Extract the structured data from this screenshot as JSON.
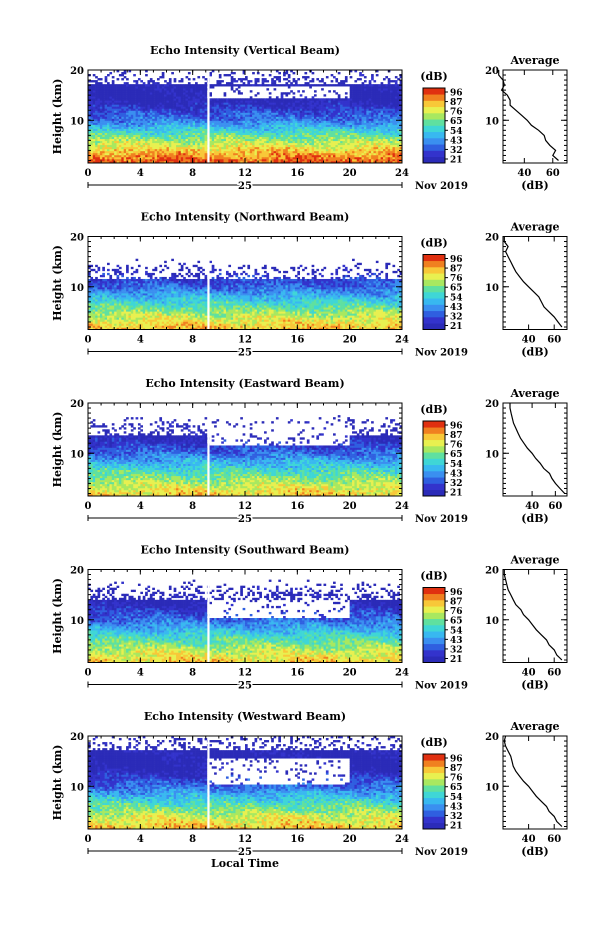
{
  "x_axis_title": "Local Time",
  "colorbar_unit": "(dB)",
  "colorbar_ticks": [
    "96",
    "87",
    "76",
    "65",
    "54",
    "43",
    "32",
    "21"
  ],
  "avg_title": "Average",
  "avg_unit": "(dB)",
  "date_day": "25",
  "date_month_year": "Nov 2019",
  "colors": {
    "blank": "#ffffff",
    "scale": [
      "#2b2bb8",
      "#3333cc",
      "#2f5fe0",
      "#3a8ff0",
      "#38b8f0",
      "#3fd6d6",
      "#5fe0a0",
      "#a8e860",
      "#e8f050",
      "#f8c838",
      "#f08020",
      "#e03010"
    ]
  },
  "chart_data": [
    {
      "type": "heatmap",
      "title": "Echo Intensity (Vertical Beam)",
      "ylabel": "Height (km)",
      "xlim": [
        0,
        24
      ],
      "xticks": [
        0,
        4,
        8,
        12,
        16,
        20,
        24
      ],
      "ylim": [
        1.5,
        20
      ],
      "yticks": [
        10,
        20
      ],
      "zlim": [
        21,
        96
      ],
      "gap_hour": 9.2,
      "profile_heights": [
        2,
        3,
        4,
        5,
        6,
        7,
        8,
        9,
        10,
        11,
        12,
        13,
        14,
        15,
        16,
        17,
        18,
        19,
        20
      ],
      "profile_db": [
        64,
        60,
        62,
        58,
        55,
        54,
        50,
        45,
        42,
        38,
        34,
        30,
        30,
        28,
        24,
        26,
        25,
        22,
        22
      ],
      "avg_xlim": [
        25,
        70
      ],
      "avg_xticks": [
        40,
        60
      ],
      "surface": {
        "base": 21,
        "heights": [
          2,
          4,
          7,
          10,
          12,
          13,
          14,
          15,
          16,
          17,
          18,
          19,
          20
        ],
        "values": [
          90,
          80,
          62,
          40,
          32,
          27,
          24,
          22,
          22,
          22,
          22,
          22,
          22
        ],
        "top": 17,
        "gaps": [
          [
            14.2,
            16.7,
            0.85
          ]
        ]
      }
    },
    {
      "type": "heatmap",
      "title": "Echo Intensity (Northward Beam)",
      "ylabel": "Height (km)",
      "xlim": [
        0,
        24
      ],
      "xticks": [
        0,
        4,
        8,
        12,
        16,
        20,
        24
      ],
      "ylim": [
        1.5,
        20
      ],
      "yticks": [
        10,
        20
      ],
      "zlim": [
        21,
        96
      ],
      "gap_hour": 9.2,
      "profile_heights": [
        2,
        3,
        4,
        5,
        6,
        7,
        8,
        9,
        10,
        11,
        12,
        13,
        14,
        15,
        16,
        17,
        18,
        19,
        20
      ],
      "profile_db": [
        66,
        63,
        60,
        56,
        52,
        50,
        48,
        44,
        40,
        36,
        33,
        30,
        28,
        26,
        24,
        22,
        24,
        21,
        21
      ],
      "avg_xlim": [
        20,
        70
      ],
      "avg_xticks": [
        40,
        60
      ],
      "surface": {
        "base": 21,
        "heights": [
          2,
          4,
          7,
          10,
          12,
          13,
          14,
          15,
          16,
          17,
          18,
          19,
          20
        ],
        "values": [
          80,
          72,
          55,
          38,
          30,
          25,
          22,
          22,
          22,
          22,
          22,
          22,
          22
        ],
        "top": 11.5,
        "gaps": [
          [
            14.2,
            18.6,
            0.9
          ]
        ]
      }
    },
    {
      "type": "heatmap",
      "title": "Echo Intensity (Eastward Beam)",
      "ylabel": "Height (km)",
      "xlim": [
        0,
        24
      ],
      "xticks": [
        0,
        4,
        8,
        12,
        16,
        20,
        24
      ],
      "ylim": [
        1.5,
        20
      ],
      "yticks": [
        10,
        20
      ],
      "zlim": [
        21,
        96
      ],
      "gap_hour": 9.2,
      "profile_heights": [
        2,
        3,
        4,
        5,
        6,
        7,
        8,
        9,
        10,
        11,
        12,
        13,
        14,
        15,
        16,
        17,
        18,
        19,
        20
      ],
      "profile_db": [
        68,
        64,
        60,
        57,
        55,
        50,
        47,
        43,
        40,
        36,
        33,
        30,
        28,
        26,
        24,
        23,
        22,
        21,
        21
      ],
      "avg_xlim": [
        15,
        70
      ],
      "avg_xticks": [
        40,
        60
      ],
      "surface": {
        "base": 21,
        "heights": [
          2,
          4,
          7,
          10,
          12,
          13,
          14,
          15,
          16,
          17,
          18,
          19,
          20
        ],
        "values": [
          78,
          70,
          55,
          38,
          30,
          25,
          22,
          22,
          22,
          22,
          22,
          22,
          22
        ],
        "top": 13.5,
        "gaps": [
          [
            11.5,
            15.5,
            0.85
          ]
        ]
      }
    },
    {
      "type": "heatmap",
      "title": "Echo Intensity (Southward Beam)",
      "ylabel": "Height (km)",
      "xlim": [
        0,
        24
      ],
      "xticks": [
        0,
        4,
        8,
        12,
        16,
        20,
        24
      ],
      "ylim": [
        1.5,
        20
      ],
      "yticks": [
        10,
        20
      ],
      "zlim": [
        21,
        96
      ],
      "gap_hour": 9.2,
      "profile_heights": [
        2,
        3,
        4,
        5,
        6,
        7,
        8,
        9,
        10,
        11,
        12,
        13,
        14,
        15,
        16,
        17,
        18,
        19,
        20
      ],
      "profile_db": [
        66,
        62,
        60,
        56,
        54,
        50,
        46,
        43,
        40,
        36,
        34,
        30,
        28,
        26,
        24,
        23,
        22,
        21,
        21
      ],
      "avg_xlim": [
        20,
        70
      ],
      "avg_xticks": [
        40,
        60
      ],
      "surface": {
        "base": 21,
        "heights": [
          2,
          4,
          7,
          10,
          12,
          13,
          14,
          15,
          16,
          17,
          18,
          19,
          20
        ],
        "values": [
          78,
          70,
          55,
          38,
          30,
          25,
          22,
          22,
          22,
          22,
          22,
          22,
          22
        ],
        "top": 14,
        "gaps": [
          [
            10.5,
            14.0,
            0.9
          ]
        ]
      }
    },
    {
      "type": "heatmap",
      "title": "Echo Intensity (Westward Beam)",
      "ylabel": "Height (km)",
      "xlim": [
        0,
        24
      ],
      "xticks": [
        0,
        4,
        8,
        12,
        16,
        20,
        24
      ],
      "ylim": [
        1.5,
        20
      ],
      "yticks": [
        10,
        20
      ],
      "zlim": [
        21,
        96
      ],
      "gap_hour": 9.2,
      "profile_heights": [
        2,
        3,
        4,
        5,
        6,
        7,
        8,
        9,
        10,
        11,
        12,
        13,
        14,
        15,
        16,
        17,
        18,
        19,
        20
      ],
      "profile_db": [
        66,
        62,
        60,
        56,
        54,
        50,
        46,
        43,
        40,
        36,
        33,
        30,
        28,
        27,
        26,
        24,
        22,
        21,
        22
      ],
      "avg_xlim": [
        20,
        70
      ],
      "avg_xticks": [
        40,
        60
      ],
      "surface": {
        "base": 21,
        "heights": [
          2,
          4,
          7,
          10,
          12,
          13,
          14,
          15,
          16,
          17,
          18,
          19,
          20
        ],
        "values": [
          80,
          72,
          56,
          38,
          30,
          25,
          22,
          22,
          22,
          22,
          22,
          22,
          22
        ],
        "top": 17,
        "gaps": [
          [
            10.5,
            15.5,
            0.9
          ]
        ]
      }
    }
  ]
}
